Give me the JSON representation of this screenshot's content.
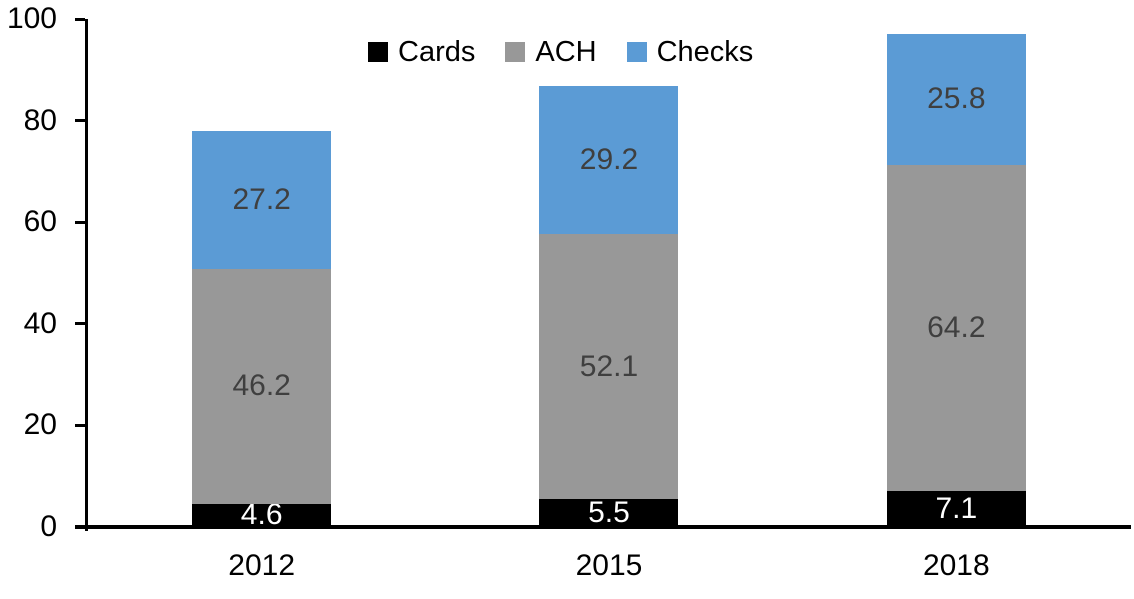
{
  "chart_data": {
    "type": "bar",
    "stacked": true,
    "title": "",
    "xlabel": "",
    "ylabel": "",
    "categories": [
      "2012",
      "2015",
      "2018"
    ],
    "series": [
      {
        "name": "Cards",
        "color": "#000000",
        "label_color": "#ffffff",
        "values": [
          4.6,
          5.5,
          7.1
        ]
      },
      {
        "name": "ACH",
        "color": "#989898",
        "label_color": "#3f3f3f",
        "values": [
          46.2,
          52.1,
          64.2
        ]
      },
      {
        "name": "Checks",
        "color": "#5b9bd5",
        "label_color": "#3f3f3f",
        "values": [
          27.2,
          29.2,
          25.8
        ]
      }
    ],
    "ylim": [
      0,
      100
    ],
    "yticks": [
      0,
      20,
      40,
      60,
      80,
      100
    ],
    "legend_position": "top-center",
    "grid": false,
    "axis_color": "#000000",
    "tick_label_color": "#000000"
  }
}
